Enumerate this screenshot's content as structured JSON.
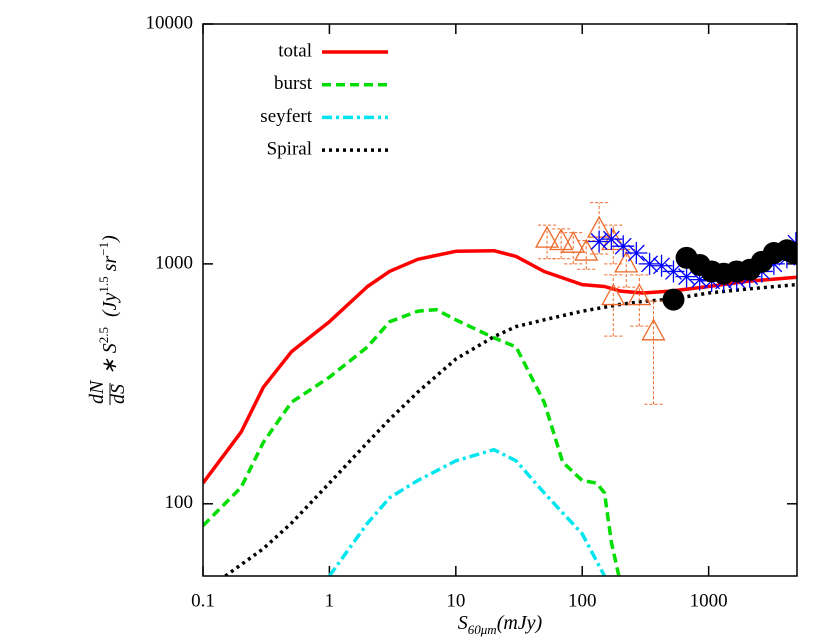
{
  "chart_data": {
    "type": "line",
    "xlabel_parts": [
      "S",
      "60μm",
      "(mJy)"
    ],
    "ylabel_parts": [
      "dN",
      "dS",
      "∗ S",
      "2.5",
      "(Jy",
      "1.5",
      "sr",
      "−1",
      ")"
    ],
    "log_x": true,
    "log_y": true,
    "xlim": [
      0.1,
      5000
    ],
    "ylim": [
      50,
      10000
    ],
    "xticks": [
      0.1,
      1,
      10,
      100,
      1000
    ],
    "yticks": [
      100,
      1000,
      10000
    ],
    "legend": "upper left",
    "series": [
      {
        "name": "total",
        "color": "#ff0000",
        "dash": "solid",
        "x": [
          0.1,
          0.2,
          0.3,
          0.5,
          1,
          2,
          3,
          5,
          10,
          20,
          30,
          50,
          100,
          150,
          200,
          300,
          500,
          1000,
          2000,
          5000
        ],
        "values": [
          122,
          199,
          306,
          430,
          574,
          805,
          931,
          1045,
          1128,
          1135,
          1075,
          930,
          820,
          805,
          770,
          756,
          770,
          805,
          845,
          880
        ]
      },
      {
        "name": "burst",
        "color": "#00dd00",
        "dash": "dashed",
        "x": [
          0.1,
          0.2,
          0.3,
          0.5,
          1,
          2,
          3,
          5,
          7,
          10,
          20,
          30,
          50,
          70,
          100,
          130,
          150,
          170,
          200
        ],
        "values": [
          81,
          117,
          180,
          265,
          337,
          451,
          574,
          635,
          645,
          585,
          492,
          451,
          265,
          149,
          125,
          122,
          111,
          69,
          47
        ]
      },
      {
        "name": "seyfert",
        "color": "#00e5ee",
        "dash": "dashdot",
        "x": [
          1,
          2,
          3,
          5,
          10,
          20,
          30,
          50,
          100,
          150
        ],
        "values": [
          50,
          83,
          106,
          125,
          151,
          168,
          151,
          111,
          75,
          50
        ]
      },
      {
        "name": "Spiral",
        "color": "#000000",
        "dash": "dotted",
        "x": [
          0.15,
          0.3,
          0.5,
          1,
          2,
          3,
          5,
          10,
          20,
          30,
          50,
          100,
          200,
          300,
          500,
          1000,
          2000,
          5000
        ],
        "values": [
          50,
          65,
          83,
          122,
          180,
          225,
          292,
          401,
          497,
          548,
          585,
          635,
          678,
          698,
          712,
          756,
          785,
          820
        ]
      }
    ],
    "points": [
      {
        "color": "#ee6a2a",
        "marker": "triangle",
        "x": [
          52.7,
          68.1,
          84.9,
          107.6,
          136,
          176,
          223,
          176,
          283,
          366
        ],
        "values": [
          1268,
          1240,
          1208,
          1120,
          1396,
          1240,
          1000,
          731,
          731,
          521
        ],
        "err_low": [
          1050,
          1050,
          1000,
          950,
          1100,
          1000,
          800,
          500,
          550,
          260
        ],
        "err_high": [
          1450,
          1400,
          1350,
          1250,
          1800,
          1450,
          1150,
          900,
          900,
          700
        ]
      },
      {
        "color": "#0000ff",
        "marker": "asterisk",
        "x": [
          136,
          170,
          211,
          268,
          341,
          424,
          527,
          669,
          849,
          1056,
          1315,
          1667,
          2113,
          2634,
          3281,
          4159,
          4900
        ],
        "values": [
          1240,
          1268,
          1185,
          1110,
          1000,
          982,
          930,
          885,
          860,
          850,
          850,
          860,
          885,
          930,
          1000,
          1065,
          1220
        ]
      },
      {
        "color": "#000000",
        "marker": "circle",
        "x": [
          527,
          669,
          849,
          1056,
          1315,
          1667,
          2113,
          2634,
          3281,
          4159,
          4700
        ],
        "values": [
          710,
          1060,
          990,
          930,
          910,
          930,
          945,
          1020,
          1110,
          1140,
          1110
        ]
      }
    ]
  }
}
